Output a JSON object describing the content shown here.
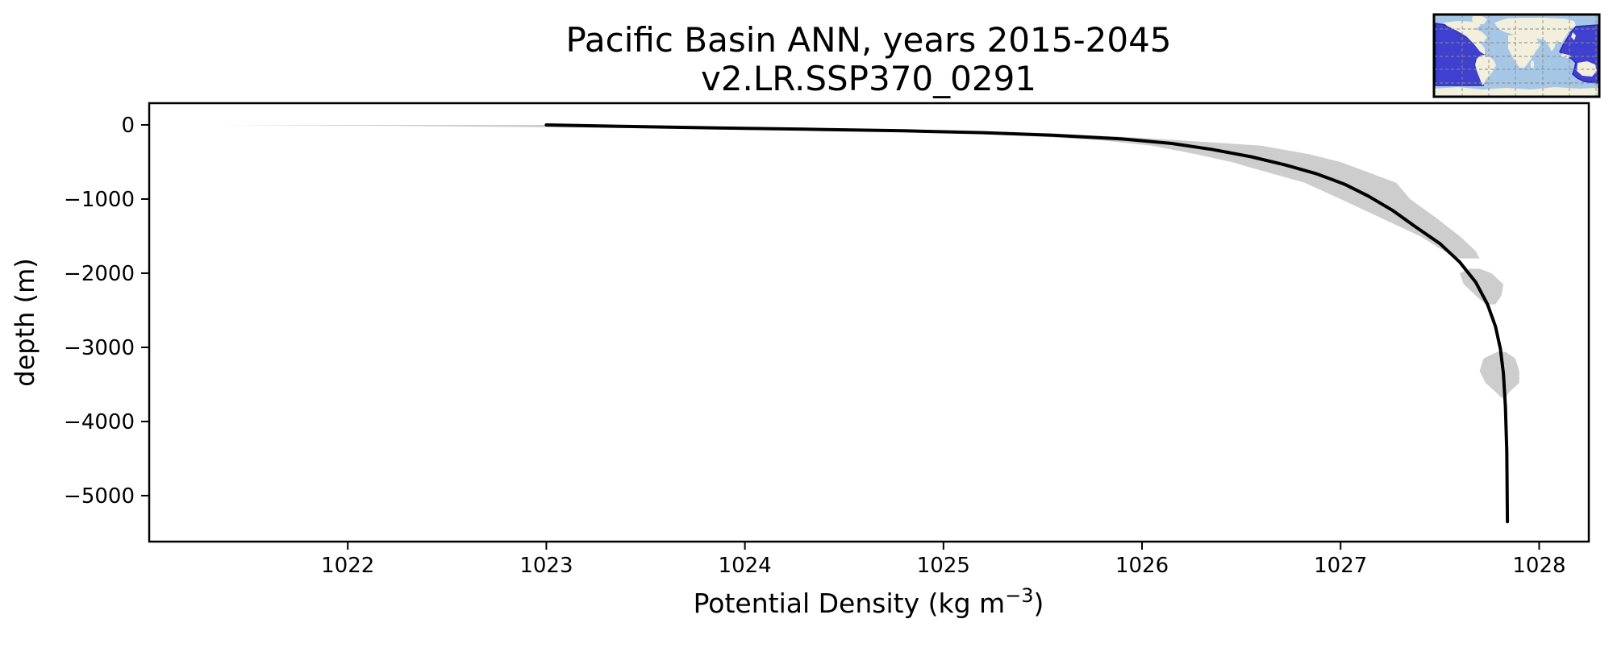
{
  "figure": {
    "background": "#ffffff",
    "title_line1": "Pacific Basin ANN, years 2015-2045",
    "title_line2": "v2.LR.SSP370_0291"
  },
  "chart_data": {
    "type": "line",
    "title": "Pacific Basin ANN, years 2015-2045",
    "subtitle": "v2.LR.SSP370_0291",
    "xlabel": "Potential Density (kg m−3)",
    "xlabel_parts": {
      "pre": "Potential Density (kg m",
      "sup": "−3",
      "post": ")"
    },
    "ylabel": "depth (m)",
    "xlim": [
      1021.0,
      1028.25
    ],
    "ylim": [
      -5620,
      293
    ],
    "xticks": [
      1022,
      1023,
      1024,
      1025,
      1026,
      1027,
      1028
    ],
    "yticks": [
      0,
      -1000,
      -2000,
      -3000,
      -4000,
      -5000
    ],
    "grid": false,
    "legend": "none",
    "colors": {
      "mean_line": "#000000",
      "band_fill": "#cdcdcd",
      "axes": "#000000"
    },
    "series": [
      {
        "name": "mean potential density profile",
        "points_density_depth": [
          [
            1023.0,
            0
          ],
          [
            1023.35,
            -18
          ],
          [
            1023.8,
            -38
          ],
          [
            1024.3,
            -58
          ],
          [
            1024.8,
            -80
          ],
          [
            1025.2,
            -105
          ],
          [
            1025.55,
            -140
          ],
          [
            1025.9,
            -190
          ],
          [
            1026.15,
            -250
          ],
          [
            1026.35,
            -330
          ],
          [
            1026.55,
            -430
          ],
          [
            1026.72,
            -540
          ],
          [
            1026.88,
            -660
          ],
          [
            1027.02,
            -800
          ],
          [
            1027.14,
            -960
          ],
          [
            1027.26,
            -1150
          ],
          [
            1027.38,
            -1380
          ],
          [
            1027.5,
            -1600
          ],
          [
            1027.6,
            -1850
          ],
          [
            1027.68,
            -2120
          ],
          [
            1027.74,
            -2420
          ],
          [
            1027.78,
            -2720
          ],
          [
            1027.805,
            -3020
          ],
          [
            1027.82,
            -3350
          ],
          [
            1027.83,
            -3800
          ],
          [
            1027.837,
            -4400
          ],
          [
            1027.84,
            -5350
          ]
        ]
      }
    ],
    "band": {
      "name": "spread (min-max) shading",
      "segments": [
        [
          [
            0,
            1021.35,
            1023.05
          ],
          [
            -15,
            1022.3,
            1023.25
          ],
          [
            -40,
            1023.3,
            1023.9
          ],
          [
            -60,
            1023.95,
            1024.45
          ],
          [
            -90,
            1024.75,
            1025.2
          ],
          [
            -120,
            1025.15,
            1025.55
          ],
          [
            -160,
            1025.5,
            1025.9
          ],
          [
            -210,
            1025.8,
            1026.2
          ],
          [
            -280,
            1026.05,
            1026.6
          ],
          [
            -400,
            1026.28,
            1026.85
          ],
          [
            -500,
            1026.45,
            1027.0
          ],
          [
            -600,
            1026.58,
            1027.1
          ],
          [
            -780,
            1026.82,
            1027.28
          ],
          [
            -1000,
            1027.0,
            1027.35
          ],
          [
            -1250,
            1027.2,
            1027.48
          ],
          [
            -1500,
            1027.4,
            1027.6
          ],
          [
            -1700,
            1027.52,
            1027.68
          ],
          [
            -1800,
            1027.6,
            1027.7
          ]
        ],
        [
          [
            -1940,
            1027.65,
            1027.7
          ],
          [
            -2000,
            1027.6,
            1027.76
          ],
          [
            -2150,
            1027.62,
            1027.82
          ],
          [
            -2300,
            1027.68,
            1027.81
          ],
          [
            -2420,
            1027.73,
            1027.78
          ]
        ],
        [
          [
            -3060,
            1027.79,
            1027.83
          ],
          [
            -3150,
            1027.72,
            1027.88
          ],
          [
            -3320,
            1027.7,
            1027.9
          ],
          [
            -3480,
            1027.73,
            1027.9
          ],
          [
            -3600,
            1027.78,
            1027.85
          ],
          [
            -3680,
            1027.81,
            1027.83
          ]
        ]
      ]
    }
  },
  "inset_map": {
    "description": "world map with Pacific basin region highlighted",
    "colors": {
      "ocean": "#a6c6e6",
      "land": "#f2efdc",
      "basin_fill": "#4040d0",
      "basin_edge": "#2828b8",
      "grid": "#8a8a8a",
      "border": "#000000"
    }
  }
}
